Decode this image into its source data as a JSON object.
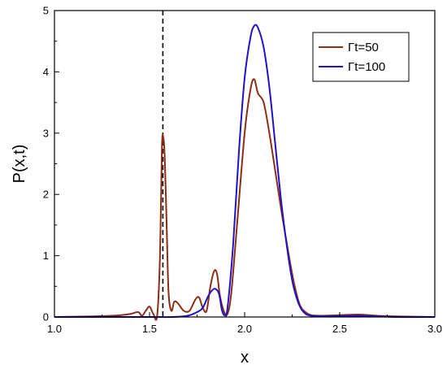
{
  "chart_data": {
    "type": "line",
    "title": "",
    "xlabel": "x",
    "ylabel": "P(x,t)",
    "xlim": [
      1.0,
      3.0
    ],
    "ylim": [
      0,
      5
    ],
    "x_ticks": [
      "1.0",
      "1.5",
      "2.0",
      "2.5",
      "3.0"
    ],
    "y_ticks": [
      "0",
      "1",
      "2",
      "3",
      "4",
      "5"
    ],
    "grid": false,
    "legend_position": "top-right",
    "reference_line": {
      "x": 1.57,
      "style": "dashed",
      "color": "#000000"
    },
    "series": [
      {
        "name": "Γt=50",
        "color": "#8B2E16",
        "points": [
          [
            1.0,
            0.0
          ],
          [
            1.1,
            0.005
          ],
          [
            1.2,
            0.01
          ],
          [
            1.3,
            0.02
          ],
          [
            1.35,
            0.03
          ],
          [
            1.4,
            0.05
          ],
          [
            1.44,
            0.08
          ],
          [
            1.46,
            0.02
          ],
          [
            1.48,
            0.1
          ],
          [
            1.5,
            0.17
          ],
          [
            1.52,
            0.05
          ],
          [
            1.54,
            0.02
          ],
          [
            1.555,
            1.0
          ],
          [
            1.565,
            2.75
          ],
          [
            1.572,
            2.93
          ],
          [
            1.58,
            2.6
          ],
          [
            1.59,
            1.5
          ],
          [
            1.6,
            0.4
          ],
          [
            1.615,
            0.1
          ],
          [
            1.63,
            0.25
          ],
          [
            1.65,
            0.22
          ],
          [
            1.68,
            0.1
          ],
          [
            1.71,
            0.1
          ],
          [
            1.74,
            0.28
          ],
          [
            1.76,
            0.32
          ],
          [
            1.78,
            0.15
          ],
          [
            1.8,
            0.1
          ],
          [
            1.82,
            0.5
          ],
          [
            1.84,
            0.75
          ],
          [
            1.855,
            0.7
          ],
          [
            1.87,
            0.35
          ],
          [
            1.89,
            0.1
          ],
          [
            1.91,
            0.05
          ],
          [
            1.93,
            0.4
          ],
          [
            1.96,
            1.5
          ],
          [
            2.0,
            3.0
          ],
          [
            2.03,
            3.7
          ],
          [
            2.05,
            3.88
          ],
          [
            2.07,
            3.65
          ],
          [
            2.1,
            3.5
          ],
          [
            2.13,
            3.0
          ],
          [
            2.17,
            2.2
          ],
          [
            2.2,
            1.6
          ],
          [
            2.23,
            1.05
          ],
          [
            2.26,
            0.55
          ],
          [
            2.29,
            0.2
          ],
          [
            2.32,
            0.08
          ],
          [
            2.35,
            0.03
          ],
          [
            2.4,
            0.02
          ],
          [
            2.5,
            0.03
          ],
          [
            2.6,
            0.04
          ],
          [
            2.7,
            0.02
          ],
          [
            2.8,
            0.01
          ],
          [
            3.0,
            0.0
          ]
        ]
      },
      {
        "name": "Γt=100",
        "color": "#1F12C8",
        "points": [
          [
            1.0,
            0.0
          ],
          [
            1.5,
            0.0
          ],
          [
            1.62,
            0.0
          ],
          [
            1.7,
            0.02
          ],
          [
            1.75,
            0.08
          ],
          [
            1.78,
            0.15
          ],
          [
            1.81,
            0.35
          ],
          [
            1.84,
            0.46
          ],
          [
            1.865,
            0.38
          ],
          [
            1.88,
            0.12
          ],
          [
            1.895,
            0.03
          ],
          [
            1.91,
            0.15
          ],
          [
            1.94,
            1.2
          ],
          [
            1.97,
            2.7
          ],
          [
            2.0,
            3.9
          ],
          [
            2.03,
            4.55
          ],
          [
            2.05,
            4.75
          ],
          [
            2.07,
            4.72
          ],
          [
            2.1,
            4.4
          ],
          [
            2.13,
            3.75
          ],
          [
            2.16,
            2.85
          ],
          [
            2.19,
            1.95
          ],
          [
            2.22,
            1.2
          ],
          [
            2.25,
            0.6
          ],
          [
            2.28,
            0.25
          ],
          [
            2.31,
            0.08
          ],
          [
            2.35,
            0.02
          ],
          [
            2.45,
            0.01
          ],
          [
            2.6,
            0.02
          ],
          [
            2.8,
            0.0
          ],
          [
            3.0,
            0.0
          ]
        ]
      }
    ]
  }
}
